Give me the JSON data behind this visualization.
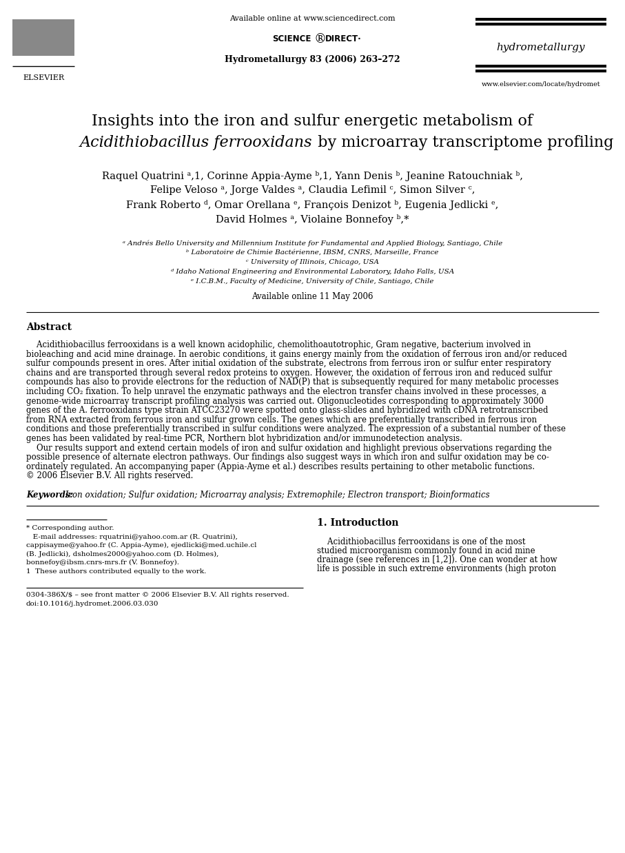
{
  "bg_color": "#ffffff",
  "available_online_header": "Available online at www.sciencedirect.com",
  "journal_ref": "Hydrometallurgy 83 (2006) 263–272",
  "journal_name": "hydrometallurgy",
  "journal_url": "www.elsevier.com/locate/hydromet",
  "elsevier_text": "ELSEVIER",
  "title_line1": "Insights into the iron and sulfur energetic metabolism of",
  "title_line2_italic": "Acidithiobacillus ferrooxidans",
  "title_line2_normal": " by microarray transcriptome profiling",
  "authors_lines": [
    "Raquel Quatrini ᵃ,1, Corinne Appia-Ayme ᵇ,1, Yann Denis ᵇ, Jeanine Ratouchniak ᵇ,",
    "Felipe Veloso ᵃ, Jorge Valdes ᵃ, Claudia Lefimil ᶜ, Simon Silver ᶜ,",
    "Frank Roberto ᵈ, Omar Orellana ᵉ, François Denizot ᵇ, Eugenia Jedlicki ᵉ,",
    "David Holmes ᵃ, Violaine Bonnefoy ᵇ,*"
  ],
  "affiliations": [
    "ᵃ Andrés Bello University and Millennium Institute for Fundamental and Applied Biology, Santiago, Chile",
    "ᵇ Laboratoire de Chimie Bactérienne, IBSM, CNRS, Marseille, France",
    "ᶜ University of Illinois, Chicago, USA",
    "ᵈ Idaho National Engineering and Environmental Laboratory, Idaho Falls, USA",
    "ᵉ I.C.B.M., Faculty of Medicine, University of Chile, Santiago, Chile"
  ],
  "available_online_date": "Available online 11 May 2006",
  "abstract_title": "Abstract",
  "abstract_lines": [
    "    Acidithiobacillus ferrooxidans is a well known acidophilic, chemolithoautotrophic, Gram negative, bacterium involved in",
    "bioleaching and acid mine drainage. In aerobic conditions, it gains energy mainly from the oxidation of ferrous iron and/or reduced",
    "sulfur compounds present in ores. After initial oxidation of the substrate, electrons from ferrous iron or sulfur enter respiratory",
    "chains and are transported through several redox proteins to oxygen. However, the oxidation of ferrous iron and reduced sulfur",
    "compounds has also to provide electrons for the reduction of NAD(P) that is subsequently required for many metabolic processes",
    "including CO₂ fixation. To help unravel the enzymatic pathways and the electron transfer chains involved in these processes, a",
    "genome-wide microarray transcript profiling analysis was carried out. Oligonucleotides corresponding to approximately 3000",
    "genes of the A. ferrooxidans type strain ATCC23270 were spotted onto glass-slides and hybridized with cDNA retrotranscribed",
    "from RNA extracted from ferrous iron and sulfur grown cells. The genes which are preferentially transcribed in ferrous iron",
    "conditions and those preferentially transcribed in sulfur conditions were analyzed. The expression of a substantial number of these",
    "genes has been validated by real-time PCR, Northern blot hybridization and/or immunodetection analysis.",
    "    Our results support and extend certain models of iron and sulfur oxidation and highlight previous observations regarding the",
    "possible presence of alternate electron pathways. Our findings also suggest ways in which iron and sulfur oxidation may be co-",
    "ordinately regulated. An accompanying paper (Appia-Ayme et al.) describes results pertaining to other metabolic functions.",
    "© 2006 Elsevier B.V. All rights reserved."
  ],
  "keywords_label": "Keywords:",
  "keywords_text": " Iron oxidation; Sulfur oxidation; Microarray analysis; Extremophile; Electron transport; Bioinformatics",
  "footer_left_lines": [
    "* Corresponding author.",
    "   E-mail addresses: rquatrini@yahoo.com.ar (R. Quatrini),",
    "cappisayme@yahoo.fr (C. Appia-Ayme), ejedlicki@med.uchile.cl",
    "(B. Jedlicki), dsholmes2000@yahoo.com (D. Holmes),",
    "bonnefoy@ibsm.cnrs-mrs.fr (V. Bonnefoy).",
    "1  These authors contributed equally to the work."
  ],
  "intro_title": "1. Introduction",
  "intro_lines": [
    "    Acidithiobacillus ferrooxidans is one of the most",
    "studied microorganism commonly found in acid mine",
    "drainage (see references in [1,2]). One can wonder at how",
    "life is possible in such extreme environments (high proton"
  ],
  "footer_bottom_lines": [
    "0304-386X/$ – see front matter © 2006 Elsevier B.V. All rights reserved.",
    "doi:10.1016/j.hydromet.2006.03.030"
  ]
}
